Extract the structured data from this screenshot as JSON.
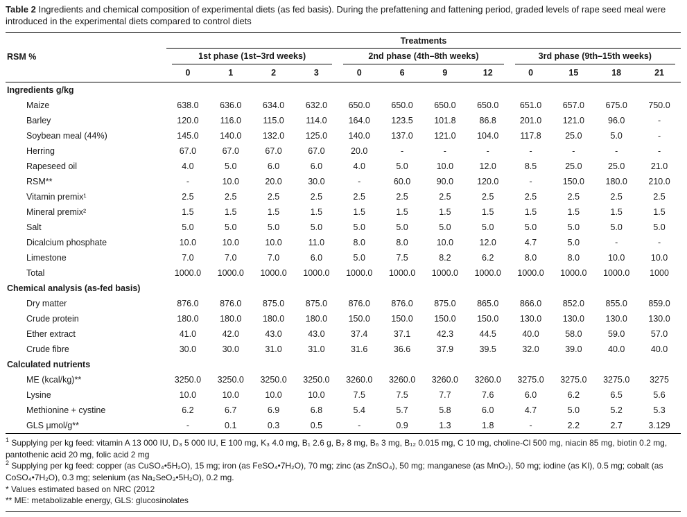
{
  "caption": {
    "label": "Table 2",
    "text": "Ingredients and chemical composition of experimental diets (as fed basis). During the prefattening and fattening period, graded levels of rape seed meal were introduced in the experimental diets compared to control diets"
  },
  "table": {
    "treatments_header": "Treatments",
    "row_header": "RSM %",
    "phases": [
      {
        "label": "1st phase (1st–3rd weeks)",
        "levels": [
          "0",
          "1",
          "2",
          "3"
        ]
      },
      {
        "label": "2nd phase (4th–8th weeks)",
        "levels": [
          "0",
          "6",
          "9",
          "12"
        ]
      },
      {
        "label": "3rd phase (9th–15th weeks)",
        "levels": [
          "0",
          "15",
          "18",
          "21"
        ]
      }
    ],
    "sections": [
      {
        "title": "Ingredients g/kg",
        "rows": [
          {
            "label": "Maize",
            "values": [
              "638.0",
              "636.0",
              "634.0",
              "632.0",
              "650.0",
              "650.0",
              "650.0",
              "650.0",
              "651.0",
              "657.0",
              "675.0",
              "750.0"
            ]
          },
          {
            "label": "Barley",
            "values": [
              "120.0",
              "116.0",
              "115.0",
              "114.0",
              "164.0",
              "123.5",
              "101.8",
              "86.8",
              "201.0",
              "121.0",
              "96.0",
              "-"
            ]
          },
          {
            "label": "Soybean meal (44%)",
            "values": [
              "145.0",
              "140.0",
              "132.0",
              "125.0",
              "140.0",
              "137.0",
              "121.0",
              "104.0",
              "117.8",
              "25.0",
              "5.0",
              "-"
            ]
          },
          {
            "label": "Herring",
            "values": [
              "67.0",
              "67.0",
              "67.0",
              "67.0",
              "20.0",
              "-",
              "-",
              "-",
              "-",
              "-",
              "-",
              "-"
            ]
          },
          {
            "label": "Rapeseed oil",
            "values": [
              "4.0",
              "5.0",
              "6.0",
              "6.0",
              "4.0",
              "5.0",
              "10.0",
              "12.0",
              "8.5",
              "25.0",
              "25.0",
              "21.0"
            ]
          },
          {
            "label": "RSM**",
            "values": [
              "-",
              "10.0",
              "20.0",
              "30.0",
              "-",
              "60.0",
              "90.0",
              "120.0",
              "-",
              "150.0",
              "180.0",
              "210.0"
            ]
          },
          {
            "label": "Vitamin premix¹",
            "values": [
              "2.5",
              "2.5",
              "2.5",
              "2.5",
              "2.5",
              "2.5",
              "2.5",
              "2.5",
              "2.5",
              "2.5",
              "2.5",
              "2.5"
            ]
          },
          {
            "label": "Mineral premix²",
            "values": [
              "1.5",
              "1.5",
              "1.5",
              "1.5",
              "1.5",
              "1.5",
              "1.5",
              "1.5",
              "1.5",
              "1.5",
              "1.5",
              "1.5"
            ]
          },
          {
            "label": "Salt",
            "values": [
              "5.0",
              "5.0",
              "5.0",
              "5.0",
              "5.0",
              "5.0",
              "5.0",
              "5.0",
              "5.0",
              "5.0",
              "5.0",
              "5.0"
            ]
          },
          {
            "label": "Dicalcium phosphate",
            "values": [
              "10.0",
              "10.0",
              "10.0",
              "11.0",
              "8.0",
              "8.0",
              "10.0",
              "12.0",
              "4.7",
              "5.0",
              "-",
              "-"
            ]
          },
          {
            "label": "Limestone",
            "values": [
              "7.0",
              "7.0",
              "7.0",
              "6.0",
              "5.0",
              "7.5",
              "8.2",
              "6.2",
              "8.0",
              "8.0",
              "10.0",
              "10.0"
            ]
          },
          {
            "label": "Total",
            "values": [
              "1000.0",
              "1000.0",
              "1000.0",
              "1000.0",
              "1000.0",
              "1000.0",
              "1000.0",
              "1000.0",
              "1000.0",
              "1000.0",
              "1000.0",
              "1000"
            ]
          }
        ]
      },
      {
        "title": "Chemical analysis (as-fed basis)",
        "rows": [
          {
            "label": "Dry matter",
            "values": [
              "876.0",
              "876.0",
              "875.0",
              "875.0",
              "876.0",
              "876.0",
              "875.0",
              "865.0",
              "866.0",
              "852.0",
              "855.0",
              "859.0"
            ]
          },
          {
            "label": "Crude protein",
            "values": [
              "180.0",
              "180.0",
              "180.0",
              "180.0",
              "150.0",
              "150.0",
              "150.0",
              "150.0",
              "130.0",
              "130.0",
              "130.0",
              "130.0"
            ]
          },
          {
            "label": "Ether extract",
            "values": [
              "41.0",
              "42.0",
              "43.0",
              "43.0",
              "37.4",
              "37.1",
              "42.3",
              "44.5",
              "40.0",
              "58.0",
              "59.0",
              "57.0"
            ]
          },
          {
            "label": "Crude fibre",
            "values": [
              "30.0",
              "30.0",
              "31.0",
              "31.0",
              "31.6",
              "36.6",
              "37.9",
              "39.5",
              "32.0",
              "39.0",
              "40.0",
              "40.0"
            ]
          }
        ]
      },
      {
        "title": "Calculated nutrients",
        "rows": [
          {
            "label": "ME (kcal/kg)**",
            "values": [
              "3250.0",
              "3250.0",
              "3250.0",
              "3250.0",
              "3260.0",
              "3260.0",
              "3260.0",
              "3260.0",
              "3275.0",
              "3275.0",
              "3275.0",
              "3275"
            ]
          },
          {
            "label": "Lysine",
            "values": [
              "10.0",
              "10.0",
              "10.0",
              "10.0",
              "7.5",
              "7.5",
              "7.7",
              "7.6",
              "6.0",
              "6.2",
              "6.5",
              "5.6"
            ]
          },
          {
            "label": "Methionine + cystine",
            "values": [
              "6.2",
              "6.7",
              "6.9",
              "6.8",
              "5.4",
              "5.7",
              "5.8",
              "6.0",
              "4.7",
              "5.0",
              "5.2",
              "5.3"
            ]
          },
          {
            "label": "GLS μmol/g**",
            "values": [
              "-",
              "0.1",
              "0.3",
              "0.5",
              "-",
              "0.9",
              "1.3",
              "1.8",
              "-",
              "2.2",
              "2.7",
              "3.129"
            ]
          }
        ]
      }
    ]
  },
  "footnotes": [
    {
      "marker": "1",
      "sup": true,
      "text": "Supplying per kg feed: vitamin A 13 000 IU, D₃ 5 000 IU, E 100 mg, K₃ 4.0 mg, B₁ 2.6 g, B₂ 8 mg, B₆ 3 mg, B₁₂ 0.015 mg, C 10 mg, choline-Cl 500 mg, niacin 85 mg, biotin 0.2 mg, pantothenic acid 20 mg, folic acid 2 mg"
    },
    {
      "marker": "2",
      "sup": true,
      "text": "Supplying per kg feed: copper (as CuSO₄•5H₂O), 15 mg; iron (as FeSO₄•7H₂O), 70 mg; zinc (as ZnSO₄), 50 mg; manganese (as MnO₂), 50 mg; iodine (as KI), 0.5 mg; cobalt (as CoSO₄•7H₂O), 0.3 mg; selenium (as Na₂SeO₃•5H₂O), 0.2 mg."
    },
    {
      "marker": "*",
      "sup": false,
      "text": "Values estimated based on NRC (2012"
    },
    {
      "marker": "**",
      "sup": false,
      "text": "ME: metabolizable energy, GLS: glucosinolates"
    }
  ]
}
